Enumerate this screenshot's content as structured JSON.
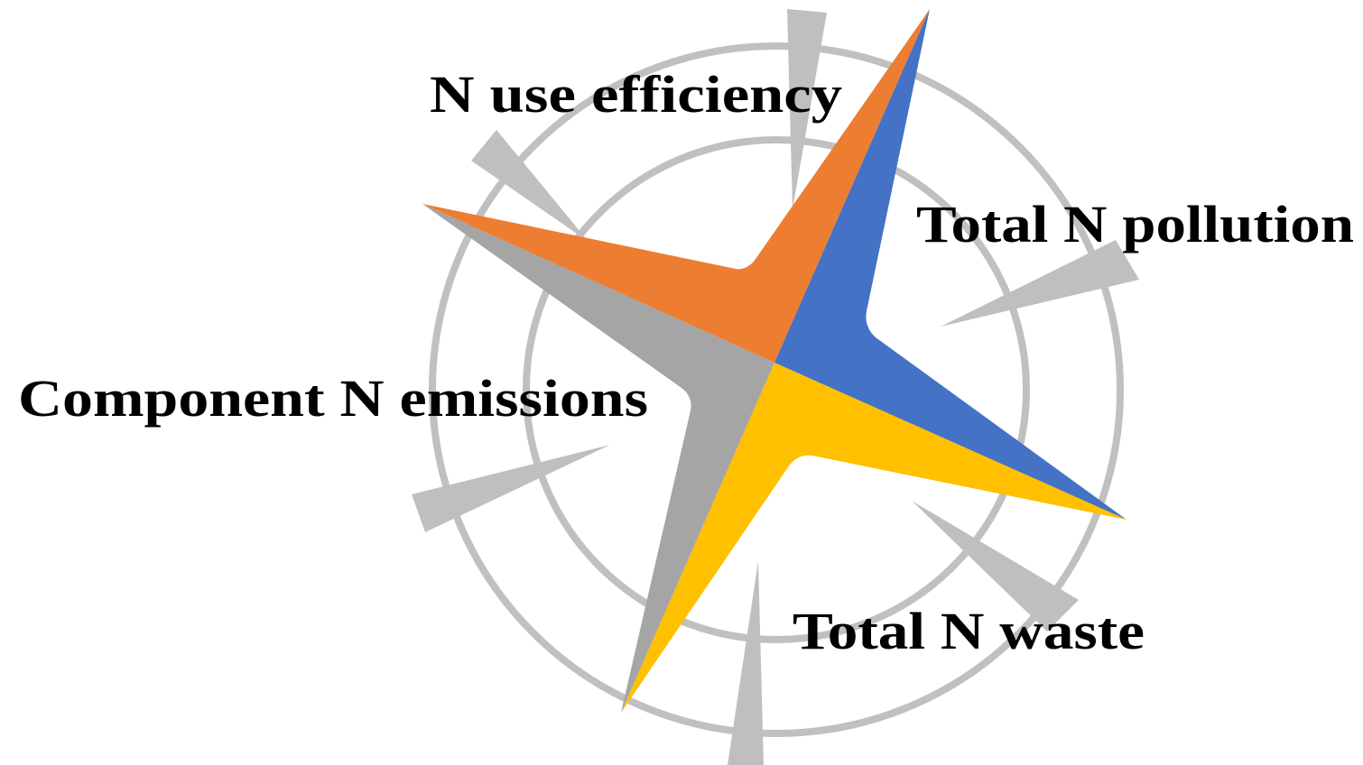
{
  "labels": [
    "N use efficiency",
    "Total N pollution",
    "Component N emissions",
    "Total N waste"
  ]
}
